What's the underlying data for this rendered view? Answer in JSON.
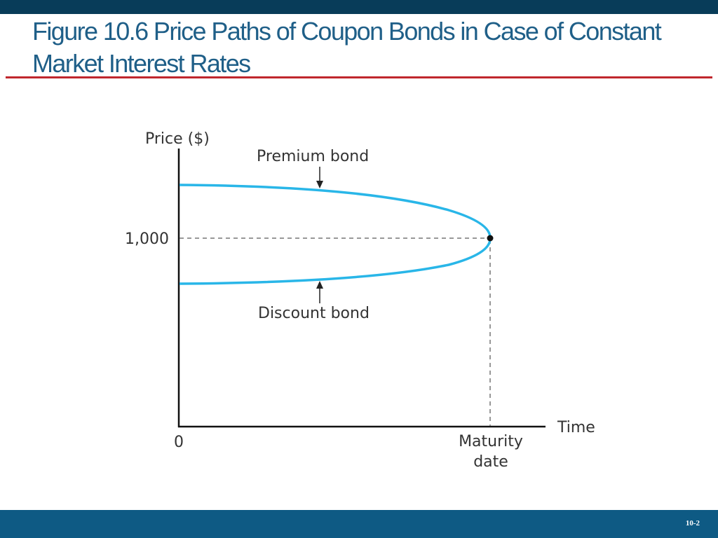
{
  "slide": {
    "title": "Figure 10.6 Price Paths of Coupon Bonds in Case of Constant Market Interest Rates",
    "page_number": "10-2"
  },
  "colors": {
    "top_bar": "#083c59",
    "title_text": "#1f5f88",
    "title_rule": "#c0272d",
    "bottom_bar": "#0e5a84",
    "curve": "#29b6e8"
  },
  "chart_data": {
    "type": "line",
    "title": "",
    "ylabel": "Price ($)",
    "xlabel": "Time",
    "y_tick": "1,000",
    "x_ticks": [
      "0",
      "Maturity date"
    ],
    "series": [
      {
        "name": "Premium bond",
        "description_points": "starts above 1,000 and converges down to 1,000 at maturity"
      },
      {
        "name": "Discount bond",
        "description_points": "starts below 1,000 and converges up to 1,000 at maturity"
      }
    ],
    "annotations": [
      "Premium bond",
      "Discount bond"
    ],
    "par_value": 1000
  }
}
